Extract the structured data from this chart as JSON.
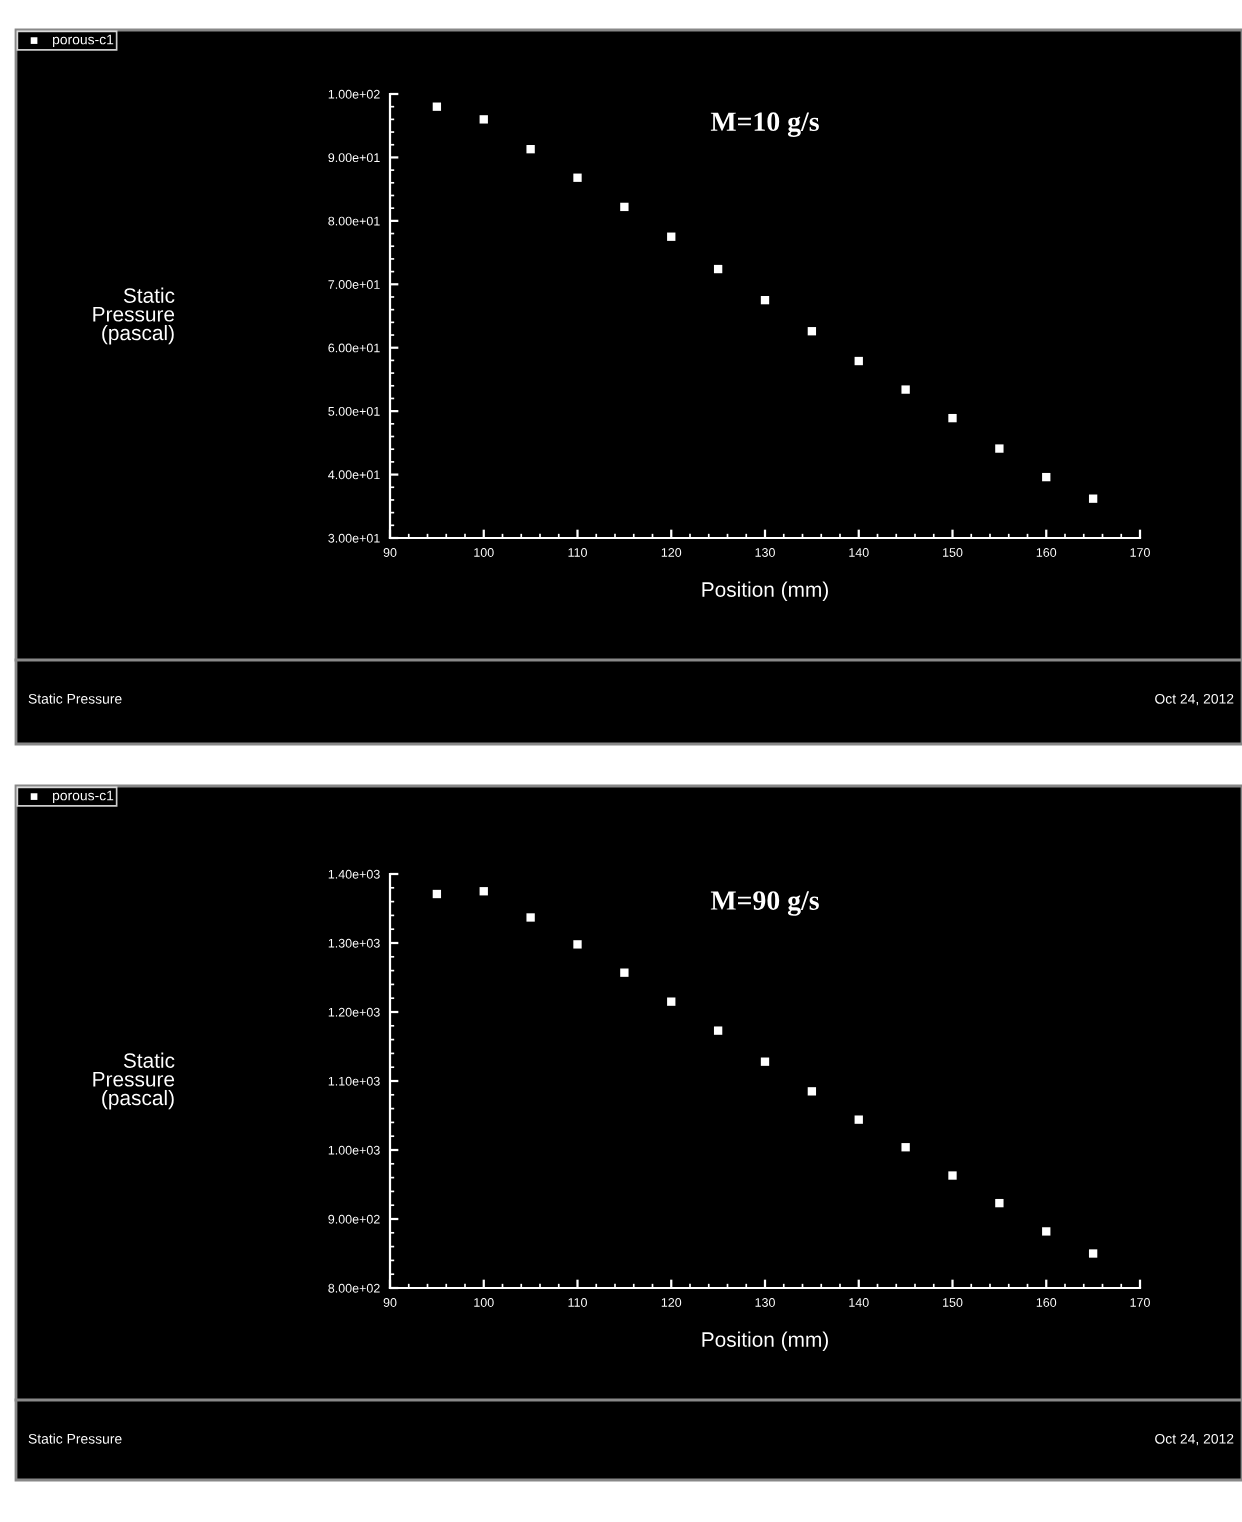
{
  "chart_data": [
    {
      "type": "scatter",
      "title": "M=10 g/s",
      "xlabel": "Position (mm)",
      "ylabel": "Static\nPressure\n(pascal)",
      "annotations": [
        "Static Pressure",
        "Oct 24, 2012"
      ],
      "legend": "top left",
      "marker": "square",
      "grid": false,
      "x": [
        95,
        100,
        105,
        110,
        115,
        120,
        125,
        130,
        135,
        140,
        145,
        150,
        155,
        160,
        165
      ],
      "series": [
        {
          "name": "porous-c1",
          "color": "#ffffff",
          "values": [
            98.0,
            96.0,
            91.3,
            86.8,
            82.2,
            77.5,
            72.4,
            67.5,
            62.6,
            57.9,
            53.4,
            48.9,
            44.1,
            39.6,
            36.2
          ]
        }
      ],
      "xlim": [
        90,
        170
      ],
      "xticks": [
        90,
        100,
        110,
        120,
        130,
        140,
        150,
        160,
        170
      ],
      "ylim": [
        30,
        100
      ],
      "yticks": [
        {
          "value": 30,
          "label": "3.00e+01"
        },
        {
          "value": 40,
          "label": "4.00e+01"
        },
        {
          "value": 50,
          "label": "5.00e+01"
        },
        {
          "value": 60,
          "label": "6.00e+01"
        },
        {
          "value": 70,
          "label": "7.00e+01"
        },
        {
          "value": 80,
          "label": "8.00e+01"
        },
        {
          "value": 90,
          "label": "9.00e+01"
        },
        {
          "value": 100,
          "label": "1.00e+02"
        }
      ]
    },
    {
      "type": "scatter",
      "title": "M=90 g/s",
      "xlabel": "Position (mm)",
      "ylabel": "Static\nPressure\n(pascal)",
      "annotations": [
        "Static Pressure",
        "Oct 24, 2012"
      ],
      "legend": "top left",
      "marker": "square",
      "grid": false,
      "x": [
        95,
        100,
        105,
        110,
        115,
        120,
        125,
        130,
        135,
        140,
        145,
        150,
        155,
        160,
        165
      ],
      "series": [
        {
          "name": "porous-c1",
          "color": "#ffffff",
          "values": [
            1371,
            1375,
            1337,
            1298,
            1257,
            1215,
            1173,
            1128,
            1085,
            1044,
            1004,
            963,
            923,
            882,
            850
          ]
        }
      ],
      "xlim": [
        90,
        170
      ],
      "xticks": [
        90,
        100,
        110,
        120,
        130,
        140,
        150,
        160,
        170
      ],
      "ylim": [
        800,
        1400
      ],
      "yticks": [
        {
          "value": 800,
          "label": "8.00e+02"
        },
        {
          "value": 900,
          "label": "9.00e+02"
        },
        {
          "value": 1000,
          "label": "1.00e+03"
        },
        {
          "value": 1100,
          "label": "1.10e+03"
        },
        {
          "value": 1200,
          "label": "1.20e+03"
        },
        {
          "value": 1300,
          "label": "1.30e+03"
        },
        {
          "value": 1400,
          "label": "1.40e+03"
        }
      ]
    }
  ]
}
